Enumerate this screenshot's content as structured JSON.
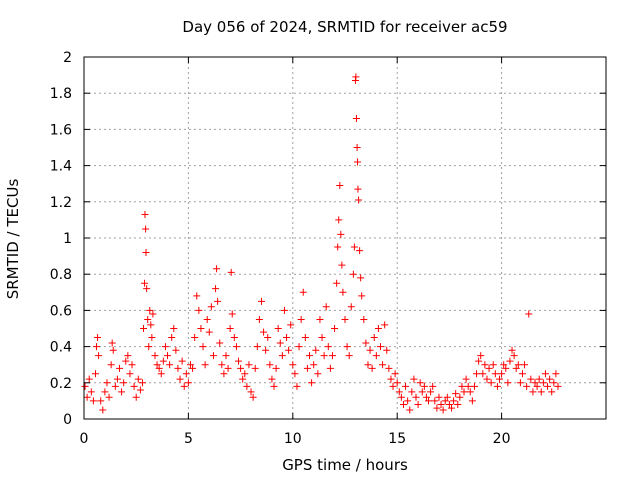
{
  "chart_data": {
    "type": "scatter",
    "title": "Day 056 of 2024, SRMTID for receiver ac59",
    "xlabel": "GPS time / hours",
    "ylabel": "SRMTID / TECUs",
    "xlim": [
      0,
      25
    ],
    "ylim": [
      0,
      2
    ],
    "xticks": [
      0,
      5,
      10,
      15,
      20
    ],
    "xtick_labels": [
      "0",
      "5",
      "10",
      "15",
      "20"
    ],
    "yticks": [
      0,
      0.2,
      0.4,
      0.6,
      0.8,
      1.0,
      1.2,
      1.4,
      1.6,
      1.8,
      2.0
    ],
    "ytick_labels": [
      "0",
      "0.2",
      "0.4",
      "0.6",
      "0.8",
      "1",
      "1.2",
      "1.4",
      "1.6",
      "1.8",
      "2"
    ],
    "grid": true,
    "marker": "+",
    "marker_color": "#ff0000",
    "series": [
      {
        "name": "SRMTID",
        "points": [
          [
            0.05,
            0.18
          ],
          [
            0.15,
            0.12
          ],
          [
            0.25,
            0.22
          ],
          [
            0.35,
            0.15
          ],
          [
            0.45,
            0.1
          ],
          [
            0.55,
            0.25
          ],
          [
            0.6,
            0.4
          ],
          [
            0.65,
            0.45
          ],
          [
            0.7,
            0.35
          ],
          [
            0.8,
            0.1
          ],
          [
            0.9,
            0.05
          ],
          [
            1.0,
            0.15
          ],
          [
            1.1,
            0.2
          ],
          [
            1.2,
            0.12
          ],
          [
            1.3,
            0.3
          ],
          [
            1.35,
            0.42
          ],
          [
            1.4,
            0.38
          ],
          [
            1.5,
            0.18
          ],
          [
            1.6,
            0.22
          ],
          [
            1.7,
            0.28
          ],
          [
            1.8,
            0.15
          ],
          [
            1.9,
            0.2
          ],
          [
            2.0,
            0.32
          ],
          [
            2.1,
            0.35
          ],
          [
            2.2,
            0.25
          ],
          [
            2.3,
            0.3
          ],
          [
            2.4,
            0.18
          ],
          [
            2.5,
            0.12
          ],
          [
            2.6,
            0.22
          ],
          [
            2.7,
            0.16
          ],
          [
            2.8,
            0.2
          ],
          [
            2.85,
            0.5
          ],
          [
            2.9,
            0.75
          ],
          [
            2.92,
            1.13
          ],
          [
            2.95,
            1.05
          ],
          [
            2.97,
            0.92
          ],
          [
            3.0,
            0.72
          ],
          [
            3.05,
            0.55
          ],
          [
            3.1,
            0.4
          ],
          [
            3.15,
            0.6
          ],
          [
            3.2,
            0.52
          ],
          [
            3.25,
            0.45
          ],
          [
            3.3,
            0.58
          ],
          [
            3.4,
            0.35
          ],
          [
            3.5,
            0.3
          ],
          [
            3.6,
            0.28
          ],
          [
            3.7,
            0.25
          ],
          [
            3.8,
            0.32
          ],
          [
            3.9,
            0.4
          ],
          [
            4.0,
            0.35
          ],
          [
            4.1,
            0.3
          ],
          [
            4.2,
            0.45
          ],
          [
            4.3,
            0.5
          ],
          [
            4.4,
            0.38
          ],
          [
            4.5,
            0.28
          ],
          [
            4.6,
            0.22
          ],
          [
            4.7,
            0.32
          ],
          [
            4.8,
            0.18
          ],
          [
            4.9,
            0.25
          ],
          [
            5.0,
            0.2
          ],
          [
            5.1,
            0.3
          ],
          [
            5.2,
            0.28
          ],
          [
            5.3,
            0.45
          ],
          [
            5.4,
            0.68
          ],
          [
            5.5,
            0.6
          ],
          [
            5.6,
            0.5
          ],
          [
            5.7,
            0.4
          ],
          [
            5.8,
            0.3
          ],
          [
            5.9,
            0.55
          ],
          [
            6.0,
            0.48
          ],
          [
            6.1,
            0.62
          ],
          [
            6.2,
            0.35
          ],
          [
            6.3,
            0.72
          ],
          [
            6.35,
            0.83
          ],
          [
            6.4,
            0.65
          ],
          [
            6.5,
            0.42
          ],
          [
            6.6,
            0.3
          ],
          [
            6.7,
            0.25
          ],
          [
            6.8,
            0.35
          ],
          [
            6.9,
            0.28
          ],
          [
            7.0,
            0.5
          ],
          [
            7.05,
            0.81
          ],
          [
            7.1,
            0.58
          ],
          [
            7.2,
            0.45
          ],
          [
            7.3,
            0.4
          ],
          [
            7.4,
            0.32
          ],
          [
            7.5,
            0.28
          ],
          [
            7.6,
            0.22
          ],
          [
            7.7,
            0.25
          ],
          [
            7.8,
            0.18
          ],
          [
            7.9,
            0.3
          ],
          [
            8.0,
            0.15
          ],
          [
            8.1,
            0.12
          ],
          [
            8.2,
            0.28
          ],
          [
            8.3,
            0.4
          ],
          [
            8.4,
            0.55
          ],
          [
            8.5,
            0.65
          ],
          [
            8.6,
            0.48
          ],
          [
            8.7,
            0.38
          ],
          [
            8.8,
            0.45
          ],
          [
            8.9,
            0.3
          ],
          [
            9.0,
            0.22
          ],
          [
            9.1,
            0.18
          ],
          [
            9.2,
            0.28
          ],
          [
            9.3,
            0.5
          ],
          [
            9.4,
            0.42
          ],
          [
            9.5,
            0.35
          ],
          [
            9.6,
            0.6
          ],
          [
            9.7,
            0.45
          ],
          [
            9.8,
            0.38
          ],
          [
            9.9,
            0.52
          ],
          [
            10.0,
            0.3
          ],
          [
            10.1,
            0.25
          ],
          [
            10.2,
            0.18
          ],
          [
            10.3,
            0.4
          ],
          [
            10.4,
            0.55
          ],
          [
            10.5,
            0.7
          ],
          [
            10.6,
            0.45
          ],
          [
            10.7,
            0.28
          ],
          [
            10.8,
            0.35
          ],
          [
            10.9,
            0.2
          ],
          [
            11.0,
            0.3
          ],
          [
            11.1,
            0.38
          ],
          [
            11.2,
            0.25
          ],
          [
            11.3,
            0.55
          ],
          [
            11.4,
            0.45
          ],
          [
            11.5,
            0.35
          ],
          [
            11.6,
            0.62
          ],
          [
            11.7,
            0.4
          ],
          [
            11.8,
            0.28
          ],
          [
            11.9,
            0.35
          ],
          [
            12.0,
            0.5
          ],
          [
            12.1,
            0.75
          ],
          [
            12.15,
            0.95
          ],
          [
            12.2,
            1.1
          ],
          [
            12.25,
            1.29
          ],
          [
            12.3,
            1.02
          ],
          [
            12.35,
            0.85
          ],
          [
            12.4,
            0.7
          ],
          [
            12.5,
            0.55
          ],
          [
            12.6,
            0.4
          ],
          [
            12.7,
            0.35
          ],
          [
            12.8,
            0.62
          ],
          [
            12.9,
            0.8
          ],
          [
            12.95,
            0.95
          ],
          [
            13.0,
            1.87
          ],
          [
            13.02,
            1.89
          ],
          [
            13.05,
            1.66
          ],
          [
            13.08,
            1.5
          ],
          [
            13.1,
            1.42
          ],
          [
            13.12,
            1.27
          ],
          [
            13.15,
            1.21
          ],
          [
            13.2,
            0.93
          ],
          [
            13.25,
            0.78
          ],
          [
            13.3,
            0.68
          ],
          [
            13.4,
            0.55
          ],
          [
            13.5,
            0.42
          ],
          [
            13.6,
            0.3
          ],
          [
            13.7,
            0.38
          ],
          [
            13.8,
            0.28
          ],
          [
            13.9,
            0.45
          ],
          [
            14.0,
            0.35
          ],
          [
            14.1,
            0.5
          ],
          [
            14.2,
            0.4
          ],
          [
            14.3,
            0.3
          ],
          [
            14.4,
            0.52
          ],
          [
            14.5,
            0.38
          ],
          [
            14.6,
            0.28
          ],
          [
            14.7,
            0.22
          ],
          [
            14.8,
            0.18
          ],
          [
            14.9,
            0.25
          ],
          [
            15.0,
            0.2
          ],
          [
            15.1,
            0.15
          ],
          [
            15.2,
            0.12
          ],
          [
            15.3,
            0.08
          ],
          [
            15.4,
            0.18
          ],
          [
            15.5,
            0.1
          ],
          [
            15.6,
            0.05
          ],
          [
            15.7,
            0.15
          ],
          [
            15.8,
            0.22
          ],
          [
            15.9,
            0.12
          ],
          [
            16.0,
            0.08
          ],
          [
            16.1,
            0.2
          ],
          [
            16.2,
            0.15
          ],
          [
            16.3,
            0.18
          ],
          [
            16.4,
            0.12
          ],
          [
            16.5,
            0.1
          ],
          [
            16.6,
            0.15
          ],
          [
            16.7,
            0.18
          ],
          [
            16.8,
            0.1
          ],
          [
            16.9,
            0.06
          ],
          [
            17.0,
            0.12
          ],
          [
            17.1,
            0.08
          ],
          [
            17.2,
            0.05
          ],
          [
            17.3,
            0.1
          ],
          [
            17.4,
            0.12
          ],
          [
            17.5,
            0.08
          ],
          [
            17.6,
            0.06
          ],
          [
            17.7,
            0.1
          ],
          [
            17.8,
            0.14
          ],
          [
            17.9,
            0.08
          ],
          [
            18.0,
            0.12
          ],
          [
            18.1,
            0.18
          ],
          [
            18.2,
            0.15
          ],
          [
            18.3,
            0.22
          ],
          [
            18.4,
            0.18
          ],
          [
            18.5,
            0.15
          ],
          [
            18.6,
            0.1
          ],
          [
            18.7,
            0.18
          ],
          [
            18.8,
            0.25
          ],
          [
            18.9,
            0.32
          ],
          [
            19.0,
            0.35
          ],
          [
            19.1,
            0.25
          ],
          [
            19.2,
            0.3
          ],
          [
            19.3,
            0.22
          ],
          [
            19.4,
            0.28
          ],
          [
            19.5,
            0.2
          ],
          [
            19.6,
            0.3
          ],
          [
            19.7,
            0.25
          ],
          [
            19.8,
            0.18
          ],
          [
            19.9,
            0.22
          ],
          [
            20.0,
            0.25
          ],
          [
            20.1,
            0.3
          ],
          [
            20.2,
            0.28
          ],
          [
            20.3,
            0.2
          ],
          [
            20.4,
            0.32
          ],
          [
            20.5,
            0.38
          ],
          [
            20.6,
            0.35
          ],
          [
            20.7,
            0.28
          ],
          [
            20.8,
            0.3
          ],
          [
            20.9,
            0.2
          ],
          [
            21.0,
            0.25
          ],
          [
            21.1,
            0.3
          ],
          [
            21.2,
            0.18
          ],
          [
            21.3,
            0.58
          ],
          [
            21.4,
            0.22
          ],
          [
            21.5,
            0.15
          ],
          [
            21.6,
            0.2
          ],
          [
            21.7,
            0.18
          ],
          [
            21.8,
            0.22
          ],
          [
            21.9,
            0.15
          ],
          [
            22.0,
            0.2
          ],
          [
            22.1,
            0.25
          ],
          [
            22.2,
            0.18
          ],
          [
            22.3,
            0.22
          ],
          [
            22.4,
            0.15
          ],
          [
            22.5,
            0.2
          ],
          [
            22.6,
            0.25
          ],
          [
            22.7,
            0.18
          ]
        ]
      }
    ]
  }
}
